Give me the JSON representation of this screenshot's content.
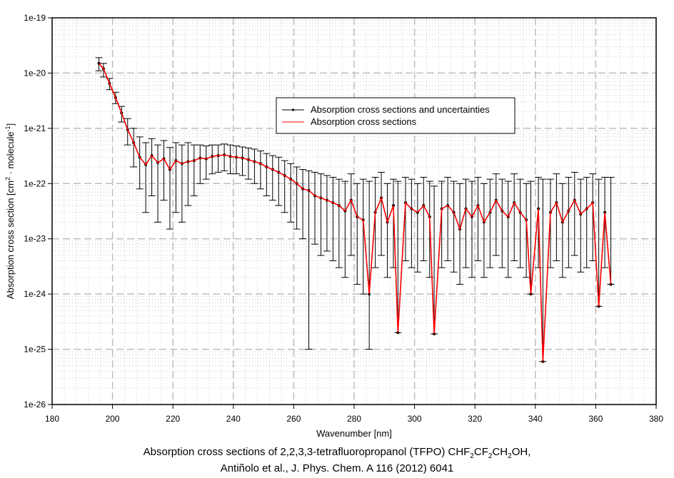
{
  "chart_data": {
    "type": "scatter",
    "title": "",
    "xlabel": "Wavenumber [nm]",
    "ylabel": "Absorption cross section [cm^2 · molecule^-1]",
    "ylabel_parts": {
      "pre": "Absorption cross section [cm",
      "sup1": "2",
      "mid": " · molecule",
      "sup2": "-1",
      "post": "]"
    },
    "xlim": [
      180,
      380
    ],
    "ylim": [
      1e-26,
      1e-19
    ],
    "yscale": "log",
    "grid": true,
    "x_ticks": [
      180,
      200,
      220,
      240,
      260,
      280,
      300,
      320,
      340,
      360,
      380
    ],
    "x_tick_labels": [
      "180",
      "200",
      "220",
      "240",
      "260",
      "280",
      "300",
      "320",
      "340",
      "360",
      "380"
    ],
    "y_ticks": [
      1e-19,
      1e-20,
      1e-21,
      1e-22,
      1e-23,
      1e-24,
      1e-25,
      1e-26
    ],
    "y_tick_labels": [
      "1e-19",
      "1e-20",
      "1e-21",
      "1e-22",
      "1e-23",
      "1e-24",
      "1e-25",
      "1e-26"
    ],
    "legend": {
      "placement": "upper-center",
      "entries": [
        {
          "label": "Absorption cross sections and uncertainties",
          "color": "#000000",
          "marker": "dot"
        },
        {
          "label": "Absorption cross sections",
          "color": "#ff0000",
          "marker": "none"
        }
      ]
    },
    "series": [
      {
        "name": "Absorption cross sections and uncertainties",
        "color": "#000000",
        "description": "Points with vertical error bars, 195-365 nm",
        "x": [
          195.5,
          197,
          199,
          201,
          203,
          205,
          207,
          209,
          211,
          213,
          215,
          217,
          219,
          221,
          223,
          225,
          227,
          229,
          231,
          233,
          235,
          237,
          239,
          241,
          243,
          245,
          247,
          249,
          251,
          253,
          255,
          257,
          259,
          261,
          263,
          265,
          267,
          269,
          271,
          273,
          275,
          277,
          279,
          281,
          283,
          285,
          287,
          289,
          291,
          293,
          294.5,
          297,
          299,
          301,
          303,
          305,
          306.5,
          309,
          311,
          313,
          315,
          317,
          319,
          321,
          323,
          325,
          327,
          329,
          331,
          333,
          335,
          337,
          338.5,
          341,
          342.5,
          345,
          347,
          349,
          351,
          353,
          355,
          357,
          359,
          361,
          363,
          365
        ],
        "y": [
          1.5e-20,
          1.2e-20,
          6.5e-21,
          3.6e-21,
          1.9e-21,
          9.5e-22,
          5.5e-22,
          3e-22,
          2.2e-22,
          3.2e-22,
          2.4e-22,
          2.8e-22,
          1.8e-22,
          2.6e-22,
          2.3e-22,
          2.5e-22,
          2.6e-22,
          2.9e-22,
          2.8e-22,
          3.1e-22,
          3.2e-22,
          3.3e-22,
          3.1e-22,
          3e-22,
          2.9e-22,
          2.7e-22,
          2.5e-22,
          2.3e-22,
          2e-22,
          1.8e-22,
          1.6e-22,
          1.4e-22,
          1.2e-22,
          1e-22,
          8e-23,
          7.5e-23,
          6e-23,
          5.5e-23,
          5e-23,
          4.5e-23,
          4e-23,
          3.2e-23,
          5e-23,
          2.5e-23,
          2.2e-23,
          1e-24,
          3e-23,
          5.5e-23,
          2e-23,
          4e-23,
          2e-25,
          4.5e-23,
          3.5e-23,
          3e-23,
          4e-23,
          2.5e-23,
          1.9e-25,
          3.5e-23,
          4e-23,
          3e-23,
          1.5e-23,
          3.5e-23,
          2.5e-23,
          4e-23,
          2e-23,
          3e-23,
          5e-23,
          3.2e-23,
          2.5e-23,
          4.5e-23,
          3e-23,
          2.2e-23,
          1e-24,
          3.5e-23,
          6e-26,
          3e-23,
          4.5e-23,
          2e-23,
          3.2e-23,
          5e-23,
          2.8e-23,
          3.5e-23,
          4.5e-23,
          6e-25,
          3e-23,
          1.5e-24
        ],
        "y_upper": [
          1.9e-20,
          1.5e-20,
          8e-21,
          4.5e-21,
          2.5e-21,
          1.5e-21,
          1e-21,
          7e-22,
          5.5e-22,
          6.5e-22,
          5e-22,
          6e-22,
          4.5e-22,
          5.5e-22,
          5e-22,
          5.5e-22,
          5e-22,
          5e-22,
          4.8e-22,
          5e-22,
          5e-22,
          5.2e-22,
          5e-22,
          4.8e-22,
          4.6e-22,
          4.4e-22,
          4.2e-22,
          3.9e-22,
          3.5e-22,
          3.2e-22,
          3e-22,
          2.6e-22,
          2.3e-22,
          2e-22,
          1.8e-22,
          1.7e-22,
          1.6e-22,
          1.5e-22,
          1.4e-22,
          1.3e-22,
          1.2e-22,
          1.1e-22,
          1.5e-22,
          1e-22,
          1.2e-22,
          1.1e-22,
          1.3e-22,
          1.6e-22,
          1e-22,
          1.2e-22,
          1.1e-22,
          1.3e-22,
          1.2e-22,
          1e-22,
          1.3e-22,
          1.1e-22,
          9e-23,
          1.1e-22,
          1.3e-22,
          1.1e-22,
          1e-22,
          1.2e-22,
          1.1e-22,
          1.3e-22,
          1e-22,
          1.2e-22,
          1.5e-22,
          1.2e-22,
          1.1e-22,
          1.5e-22,
          1.2e-22,
          1e-22,
          1.1e-22,
          1.3e-22,
          1.2e-22,
          1.2e-22,
          1.5e-22,
          1e-22,
          1.3e-22,
          1.6e-22,
          1.2e-22,
          1.3e-22,
          1.5e-22,
          1.2e-22,
          1.3e-22,
          1.3e-22
        ],
        "y_lower": [
          1.1e-20,
          8.5e-21,
          5e-21,
          2.8e-21,
          1.3e-21,
          5e-22,
          2e-22,
          8e-23,
          3e-23,
          6e-23,
          2e-23,
          5e-23,
          1.5e-23,
          3e-23,
          2e-23,
          4e-23,
          6e-23,
          1e-22,
          1.2e-22,
          1.5e-22,
          1.6e-22,
          1.7e-22,
          1.5e-22,
          1.5e-22,
          1.4e-22,
          1.2e-22,
          1e-22,
          8e-23,
          6e-23,
          5e-23,
          4e-23,
          3e-23,
          2e-23,
          1.5e-23,
          1e-23,
          1e-25,
          8e-24,
          5e-24,
          6e-24,
          4e-24,
          3e-24,
          2e-24,
          5e-24,
          1.5e-24,
          1e-24,
          1e-25,
          3e-24,
          5e-24,
          2e-24,
          3e-24,
          2e-25,
          4e-24,
          3e-24,
          2.5e-24,
          4e-24,
          2e-24,
          1.9e-25,
          3e-24,
          4e-24,
          2.5e-24,
          1.5e-24,
          3e-24,
          2e-24,
          4e-24,
          2e-24,
          3e-24,
          5e-24,
          3e-24,
          2e-24,
          4e-24,
          3e-24,
          2e-24,
          1e-24,
          3e-24,
          6e-26,
          3e-24,
          4e-24,
          2e-24,
          3e-24,
          5e-24,
          2.5e-24,
          3e-24,
          4e-24,
          6e-25,
          3e-24,
          1.5e-24
        ]
      },
      {
        "name": "Absorption cross sections",
        "color": "#ff0000",
        "description": "Line through central values",
        "x": [
          195.5,
          197,
          199,
          201,
          203,
          205,
          207,
          209,
          211,
          213,
          215,
          217,
          219,
          221,
          223,
          225,
          227,
          229,
          231,
          233,
          235,
          237,
          239,
          241,
          243,
          245,
          247,
          249,
          251,
          253,
          255,
          257,
          259,
          261,
          263,
          265,
          267,
          269,
          271,
          273,
          275,
          277,
          279,
          281,
          283,
          285,
          287,
          289,
          291,
          293,
          294.5,
          297,
          299,
          301,
          303,
          305,
          306.5,
          309,
          311,
          313,
          315,
          317,
          319,
          321,
          323,
          325,
          327,
          329,
          331,
          333,
          335,
          337,
          338.5,
          341,
          342.5,
          345,
          347,
          349,
          351,
          353,
          355,
          357,
          359,
          361,
          363,
          365
        ],
        "y": [
          1.5e-20,
          1.2e-20,
          6.5e-21,
          3.6e-21,
          1.9e-21,
          9.5e-22,
          5.5e-22,
          3e-22,
          2.2e-22,
          3.2e-22,
          2.4e-22,
          2.8e-22,
          1.8e-22,
          2.6e-22,
          2.3e-22,
          2.5e-22,
          2.6e-22,
          2.9e-22,
          2.8e-22,
          3.1e-22,
          3.2e-22,
          3.3e-22,
          3.1e-22,
          3e-22,
          2.9e-22,
          2.7e-22,
          2.5e-22,
          2.3e-22,
          2e-22,
          1.8e-22,
          1.6e-22,
          1.4e-22,
          1.2e-22,
          1e-22,
          8e-23,
          7.5e-23,
          6e-23,
          5.5e-23,
          5e-23,
          4.5e-23,
          4e-23,
          3.2e-23,
          5e-23,
          2.5e-23,
          2.2e-23,
          1e-24,
          3e-23,
          5.5e-23,
          2e-23,
          4e-23,
          2e-25,
          4.5e-23,
          3.5e-23,
          3e-23,
          4e-23,
          2.5e-23,
          1.9e-25,
          3.5e-23,
          4e-23,
          3e-23,
          1.5e-23,
          3.5e-23,
          2.5e-23,
          4e-23,
          2e-23,
          3e-23,
          5e-23,
          3.2e-23,
          2.5e-23,
          4.5e-23,
          3e-23,
          2.2e-23,
          1e-24,
          3.5e-23,
          6e-26,
          3e-23,
          4.5e-23,
          2e-23,
          3.2e-23,
          5e-23,
          2.8e-23,
          3.5e-23,
          4.5e-23,
          6e-25,
          3e-23,
          1.5e-24
        ]
      }
    ]
  },
  "caption": {
    "line1_pre": "Absorption cross sections of 2,2,3,3-tetrafluoropropanol (TFPO) CHF",
    "sub1": "2",
    "mid1": "CF",
    "sub2": "2",
    "mid2": "CH",
    "sub3": "2",
    "line1_post": "OH,",
    "line2": "Antiñolo et al., J. Phys. Chem. A 116 (2012) 6041"
  }
}
